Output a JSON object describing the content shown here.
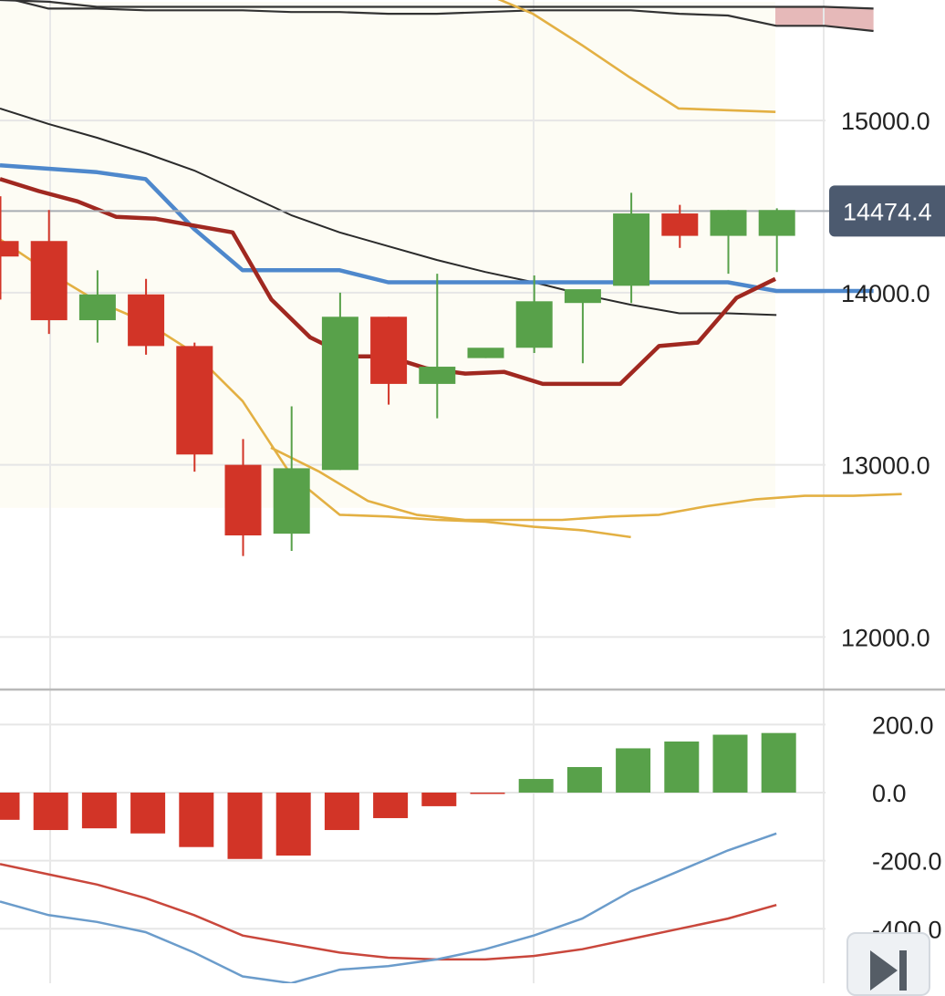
{
  "chart_data": [
    {
      "type": "candlestick",
      "title": "",
      "ylim": [
        11700,
        15700
      ],
      "y_ticks": [
        "15000.0",
        "14000.0",
        "13000.0",
        "12000.0"
      ],
      "last_price": {
        "label": "14474.4",
        "value": 14474.4
      },
      "grid": true,
      "candles": [
        {
          "o": 14300,
          "h": 14560,
          "l": 13960,
          "c": 14210
        },
        {
          "o": 14300,
          "h": 14480,
          "l": 13760,
          "c": 13840
        },
        {
          "o": 13840,
          "h": 14130,
          "l": 13710,
          "c": 13990
        },
        {
          "o": 13990,
          "h": 14080,
          "l": 13640,
          "c": 13690
        },
        {
          "o": 13690,
          "h": 13710,
          "l": 12960,
          "c": 13060
        },
        {
          "o": 13000,
          "h": 13150,
          "l": 12470,
          "c": 12590
        },
        {
          "o": 12600,
          "h": 13340,
          "l": 12500,
          "c": 12980
        },
        {
          "o": 12970,
          "h": 14000,
          "l": 12970,
          "c": 13860
        },
        {
          "o": 13860,
          "h": 13860,
          "l": 13350,
          "c": 13470
        },
        {
          "o": 13470,
          "h": 14110,
          "l": 13270,
          "c": 13570
        },
        {
          "o": 13620,
          "h": 13670,
          "l": 13620,
          "c": 13680
        },
        {
          "o": 13680,
          "h": 14100,
          "l": 13650,
          "c": 13950
        },
        {
          "o": 13940,
          "h": 14010,
          "l": 13590,
          "c": 14020
        },
        {
          "o": 14040,
          "h": 14580,
          "l": 13940,
          "c": 14460
        },
        {
          "o": 14460,
          "h": 14510,
          "l": 14260,
          "c": 14330
        },
        {
          "o": 14330,
          "h": 14480,
          "l": 14110,
          "c": 14480
        },
        {
          "o": 14330,
          "h": 14490,
          "l": 14120,
          "c": 14480
        }
      ],
      "series": [
        {
          "values": [
            15720,
            15650,
            15650,
            15640,
            15640,
            15640,
            15630,
            15630,
            15620,
            15620,
            15630,
            15640,
            15640,
            15640,
            15620,
            15610,
            15550,
            15550,
            15520
          ]
        },
        {
          "values": [
            15700,
            15690,
            15660,
            15660,
            15660,
            15660,
            15660,
            15660,
            15660,
            15660,
            15660,
            15660,
            15660,
            15660,
            15660,
            15660,
            15660,
            15660,
            15650
          ]
        },
        {
          "values": [
            15740,
            15620,
            15440,
            15250,
            15070,
            15060,
            15050
          ]
        },
        {
          "values": [
            13100,
            12960,
            12790,
            12710,
            12680,
            12680,
            12680,
            12700,
            12710,
            12760,
            12800,
            12820,
            12820,
            12830
          ]
        },
        {
          "values": [
            15070,
            14980,
            14900,
            14810,
            14710,
            14580,
            14450,
            14350,
            14270,
            14190,
            14120,
            14060,
            13990,
            13930,
            13880,
            13880,
            13870
          ]
        },
        {
          "values": [
            14740,
            14720,
            14700,
            14660,
            14370,
            14130,
            14130,
            14130,
            14060,
            14060,
            14060,
            14060,
            14060,
            14060,
            14060,
            14060,
            14010,
            14010,
            14010
          ]
        },
        {
          "values": [
            14660,
            14590,
            14530,
            14440,
            14430,
            14390,
            14350,
            13960,
            13740,
            13630,
            13630,
            13560,
            13530,
            13540,
            13470,
            13470,
            13470,
            13690,
            13710,
            13970,
            14080
          ]
        },
        {
          "values": [
            14310,
            14120,
            13950,
            13830,
            13650,
            13370,
            12940,
            12710,
            12700,
            12680,
            12670,
            12640,
            12620,
            12580
          ]
        }
      ]
    },
    {
      "type": "bar",
      "ylim": [
        -560,
        300
      ],
      "y_ticks": [
        "200.0",
        "0.0",
        "-200.0",
        "-400.0"
      ],
      "values": [
        -80,
        -110,
        -105,
        -120,
        -160,
        -195,
        -185,
        -110,
        -75,
        -40,
        -3,
        40,
        75,
        130,
        150,
        170,
        175
      ],
      "series": [
        {
          "values": [
            -210,
            -240,
            -270,
            -310,
            -360,
            -420,
            -445,
            -470,
            -485,
            -490,
            -490,
            -480,
            -460,
            -430,
            -400,
            -370,
            -330
          ]
        },
        {
          "values": [
            -320,
            -360,
            -380,
            -410,
            -470,
            -540,
            -560,
            -520,
            -510,
            -490,
            -460,
            -420,
            -370,
            -290,
            -230,
            -170,
            -120
          ]
        }
      ]
    }
  ]
}
